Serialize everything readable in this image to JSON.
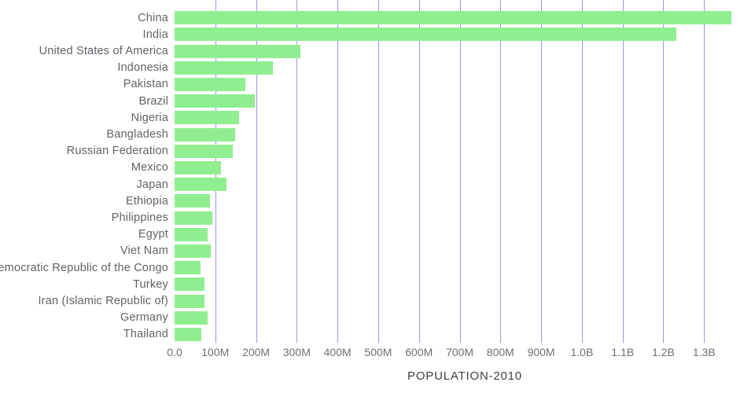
{
  "chart_data": {
    "type": "bar",
    "orientation": "horizontal",
    "title": "",
    "xlabel": "POPULATION-2010",
    "ylabel": "",
    "grid": true,
    "legend_position": "none",
    "bar_color": "#90ee90",
    "gridline_color": "#8585ea",
    "label_color": "#5f6368",
    "xlim_millions": [
      0,
      1425
    ],
    "categories": [
      "China",
      "India",
      "United States of America",
      "Indonesia",
      "Pakistan",
      "Brazil",
      "Nigeria",
      "Bangladesh",
      "Russian Federation",
      "Mexico",
      "Japan",
      "Ethiopia",
      "Philippines",
      "Egypt",
      "Viet Nam",
      "Democratic Republic of the Congo",
      "Turkey",
      "Iran (Islamic Republic of)",
      "Germany",
      "Thailand"
    ],
    "values_millions": [
      1368,
      1231,
      309,
      242,
      174,
      196,
      158,
      148,
      143,
      114,
      128,
      87,
      93,
      82,
      88,
      64,
      73,
      74,
      81,
      66
    ],
    "ticks": [
      {
        "value_millions": 0,
        "label": "0.0"
      },
      {
        "value_millions": 100,
        "label": "100M"
      },
      {
        "value_millions": 200,
        "label": "200M"
      },
      {
        "value_millions": 300,
        "label": "300M"
      },
      {
        "value_millions": 400,
        "label": "400M"
      },
      {
        "value_millions": 500,
        "label": "500M"
      },
      {
        "value_millions": 600,
        "label": "600M"
      },
      {
        "value_millions": 700,
        "label": "700M"
      },
      {
        "value_millions": 800,
        "label": "800M"
      },
      {
        "value_millions": 900,
        "label": "900M"
      },
      {
        "value_millions": 1000,
        "label": "1.0B"
      },
      {
        "value_millions": 1100,
        "label": "1.1B"
      },
      {
        "value_millions": 1200,
        "label": "1.2B"
      },
      {
        "value_millions": 1300,
        "label": "1.3B"
      }
    ]
  }
}
